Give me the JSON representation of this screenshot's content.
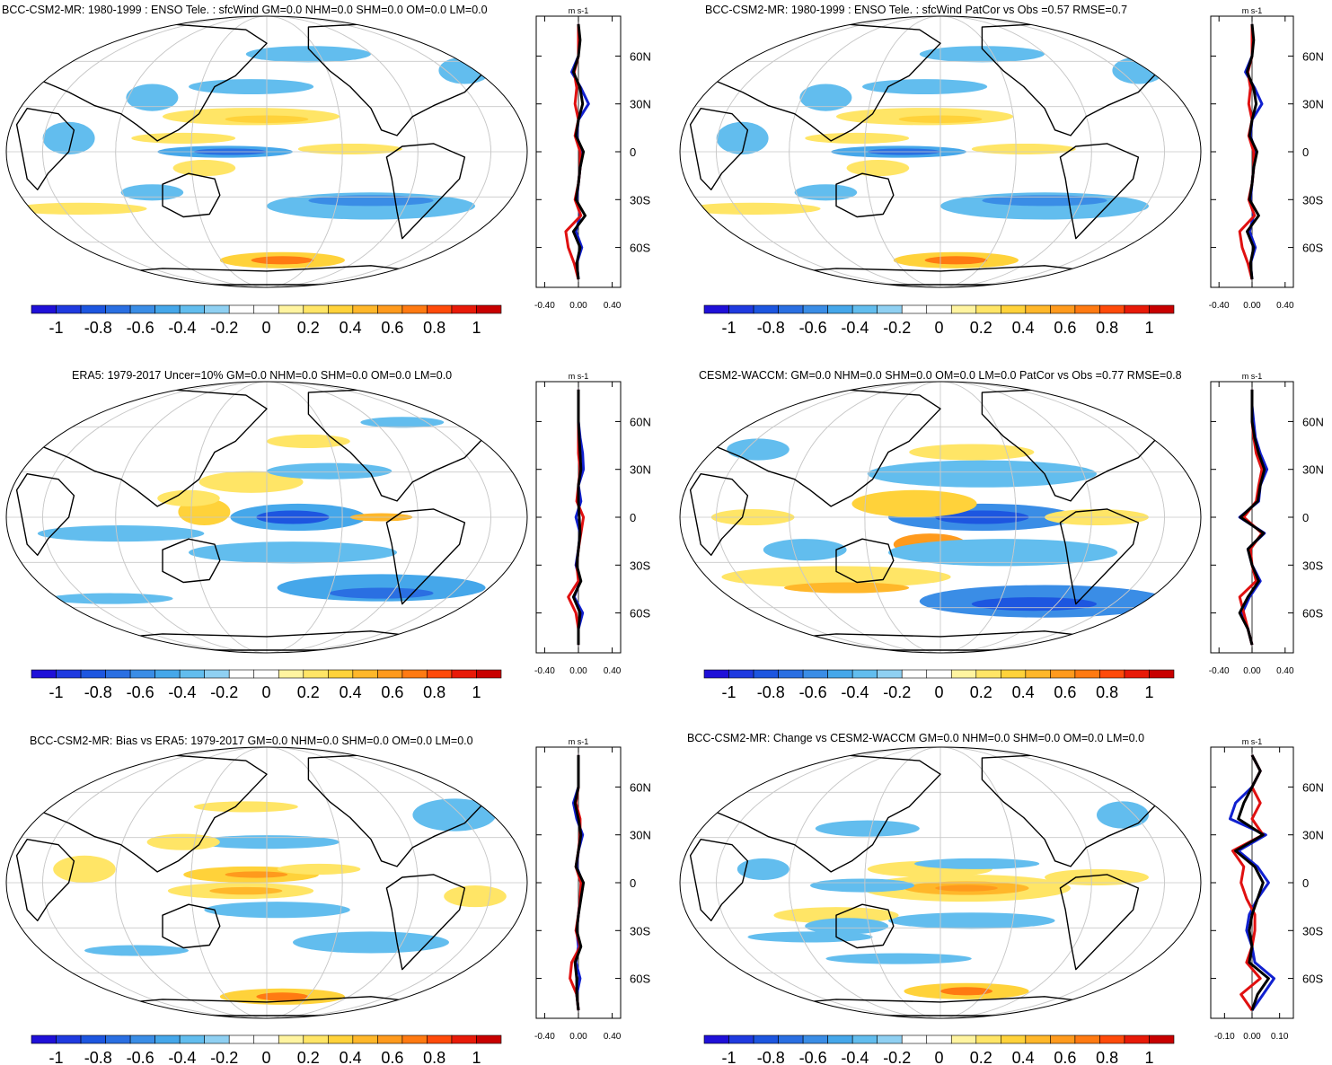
{
  "colorbar": {
    "colors": [
      "#1f10d8",
      "#1f3ae0",
      "#1d56e0",
      "#2a6fe2",
      "#3a8de6",
      "#45a7ea",
      "#62bdee",
      "#8fd0f2",
      "#ffffff",
      "#ffffff",
      "#fff4a0",
      "#ffe566",
      "#ffd23a",
      "#ffb72a",
      "#ff9a1d",
      "#ff7a12",
      "#ff4a0a",
      "#e81a08",
      "#c80000"
    ],
    "labels": [
      "-1",
      "-0.8",
      "-0.6",
      "-0.4",
      "-0.2",
      "0",
      "0.2",
      "0.4",
      "0.6",
      "0.8",
      "1"
    ]
  },
  "unit_label": "m s-1",
  "lat_labels": [
    "60N",
    "30N",
    "0",
    "30S",
    "60S"
  ],
  "panels": [
    {
      "id": "bcc-hist",
      "title": "BCC-CSM2-MR: 1980-1999 : ENSO Tele. : sfcWind GM=0.0 NHM=0.0 SHM=0.0 OM=0.0 LM=0.0",
      "profile_ticks": [
        "-0.40",
        "0.00",
        "0.40"
      ],
      "profile_range": [
        -0.5,
        0.5
      ]
    },
    {
      "id": "bcc-patcor",
      "title": "BCC-CSM2-MR: 1980-1999 : ENSO Tele. : sfcWind PatCor vs Obs =0.57 RMSE=0.7",
      "profile_ticks": [
        "-0.40",
        "0.00",
        "0.40"
      ],
      "profile_range": [
        -0.5,
        0.5
      ]
    },
    {
      "id": "era5",
      "title": "ERA5: 1979-2017 Uncer=10% GM=0.0 NHM=0.0 SHM=0.0 OM=0.0 LM=0.0",
      "profile_ticks": [
        "-0.40",
        "0.00",
        "0.40"
      ],
      "profile_range": [
        -0.5,
        0.5
      ]
    },
    {
      "id": "cesm2",
      "title": "CESM2-WACCM: GM=0.0 NHM=0.0 SHM=0.0 OM=0.0 LM=0.0 PatCor vs Obs =0.77 RMSE=0.8",
      "profile_ticks": [
        "-0.40",
        "0.00",
        "0.40"
      ],
      "profile_range": [
        -0.5,
        0.5
      ]
    },
    {
      "id": "bcc-bias",
      "title": "BCC-CSM2-MR: Bias vs ERA5: 1979-2017 GM=0.0 NHM=0.0 SHM=0.0 OM=0.0 LM=0.0",
      "profile_ticks": [
        "-0.40",
        "0.00",
        "0.40"
      ],
      "profile_range": [
        -0.5,
        0.5
      ]
    },
    {
      "id": "bcc-change",
      "title": "BCC-CSM2-MR: Change vs CESM2-WACCM GM=0.0 NHM=0.0 SHM=0.0 OM=0.0 LM=0.0",
      "profile_ticks": [
        "-0.10",
        "0.00",
        "0.10"
      ],
      "profile_range": [
        -0.15,
        0.15
      ]
    }
  ],
  "chart_data": {
    "type": "heatmap",
    "variable": "sfcWind ENSO teleconnection",
    "units": "m s-1",
    "value_range": [
      -1,
      1
    ],
    "profile_lats": [
      -80,
      -70,
      -60,
      -50,
      -40,
      -30,
      -20,
      -10,
      0,
      10,
      20,
      30,
      40,
      50,
      60,
      70,
      80
    ],
    "profiles": [
      {
        "panel": "bcc-hist",
        "series": [
          {
            "name": "blue",
            "color": "#1020d0",
            "values": [
              0.0,
              -0.02,
              0.04,
              -0.03,
              0.02,
              -0.02,
              0.0,
              0.02,
              0.04,
              -0.02,
              0.0,
              0.12,
              0.03,
              -0.08,
              0.0,
              0.0,
              0.0
            ]
          },
          {
            "name": "red",
            "color": "#e01010",
            "values": [
              0.0,
              -0.05,
              -0.12,
              -0.15,
              0.03,
              -0.04,
              0.0,
              0.02,
              0.02,
              -0.04,
              0.0,
              -0.04,
              -0.02,
              -0.05,
              0.0,
              0.0,
              0.0
            ]
          },
          {
            "name": "black",
            "color": "#000000",
            "values": [
              0.0,
              -0.02,
              0.02,
              -0.06,
              0.08,
              -0.03,
              0.0,
              0.02,
              0.06,
              -0.03,
              0.0,
              0.05,
              0.02,
              -0.06,
              0.0,
              0.02,
              0.0
            ]
          }
        ]
      },
      {
        "panel": "bcc-patcor",
        "series": [
          {
            "name": "blue",
            "color": "#1020d0",
            "values": [
              0.0,
              -0.02,
              0.04,
              -0.03,
              0.02,
              -0.02,
              0.0,
              0.02,
              0.04,
              -0.02,
              0.0,
              0.12,
              0.03,
              -0.08,
              0.0,
              0.0,
              0.0
            ]
          },
          {
            "name": "red",
            "color": "#e01010",
            "values": [
              0.0,
              -0.05,
              -0.12,
              -0.15,
              0.03,
              -0.04,
              0.0,
              0.02,
              0.02,
              -0.04,
              0.0,
              -0.04,
              -0.02,
              -0.05,
              0.0,
              0.0,
              0.0
            ]
          },
          {
            "name": "black",
            "color": "#000000",
            "values": [
              0.0,
              -0.02,
              0.02,
              -0.06,
              0.08,
              -0.03,
              0.0,
              0.02,
              0.06,
              -0.03,
              0.0,
              0.05,
              0.02,
              -0.06,
              0.0,
              0.02,
              0.0
            ]
          }
        ]
      },
      {
        "panel": "era5",
        "series": [
          {
            "name": "blue",
            "color": "#1020d0",
            "values": [
              0.0,
              0.0,
              0.05,
              -0.05,
              0.02,
              -0.03,
              0.0,
              0.02,
              -0.03,
              0.03,
              0.0,
              0.06,
              0.05,
              0.02,
              0.0,
              0.0,
              0.0
            ]
          },
          {
            "name": "red",
            "color": "#e01010",
            "values": [
              0.0,
              0.0,
              -0.03,
              -0.12,
              0.0,
              -0.02,
              0.0,
              0.03,
              0.06,
              -0.02,
              0.0,
              0.02,
              0.0,
              0.0,
              0.0,
              0.0,
              0.0
            ]
          },
          {
            "name": "black",
            "color": "#000000",
            "values": [
              0.0,
              0.0,
              0.02,
              -0.06,
              0.03,
              -0.02,
              0.0,
              0.02,
              0.01,
              0.0,
              0.0,
              0.03,
              0.02,
              0.01,
              0.0,
              0.0,
              0.0
            ]
          }
        ]
      },
      {
        "panel": "cesm2",
        "series": [
          {
            "name": "blue",
            "color": "#1020d0",
            "values": [
              0.0,
              -0.05,
              -0.12,
              -0.03,
              0.1,
              0.0,
              -0.05,
              0.15,
              -0.15,
              0.08,
              0.1,
              0.18,
              0.1,
              0.04,
              0.02,
              0.0,
              0.0
            ]
          },
          {
            "name": "red",
            "color": "#e01010",
            "values": [
              0.0,
              -0.05,
              -0.1,
              -0.15,
              0.05,
              0.0,
              -0.02,
              0.12,
              -0.1,
              0.05,
              0.08,
              0.12,
              0.05,
              0.02,
              0.0,
              0.0,
              0.0
            ]
          },
          {
            "name": "black",
            "color": "#000000",
            "values": [
              0.0,
              -0.05,
              -0.15,
              -0.05,
              0.08,
              0.0,
              -0.05,
              0.14,
              -0.14,
              0.07,
              0.1,
              0.15,
              0.08,
              0.03,
              0.0,
              0.0,
              0.0
            ]
          }
        ]
      },
      {
        "panel": "bcc-bias",
        "series": [
          {
            "name": "blue",
            "color": "#1020d0",
            "values": [
              0.0,
              -0.02,
              0.02,
              -0.03,
              0.0,
              -0.02,
              0.0,
              0.02,
              0.05,
              -0.02,
              0.0,
              0.05,
              -0.02,
              -0.06,
              0.0,
              0.0,
              0.0
            ]
          },
          {
            "name": "red",
            "color": "#e01010",
            "values": [
              0.0,
              -0.02,
              -0.1,
              -0.08,
              0.02,
              -0.03,
              0.0,
              0.02,
              0.03,
              -0.03,
              0.0,
              0.02,
              0.02,
              -0.03,
              0.0,
              0.0,
              0.0
            ]
          },
          {
            "name": "black",
            "color": "#000000",
            "values": [
              0.0,
              -0.02,
              -0.02,
              -0.04,
              0.03,
              -0.02,
              0.0,
              0.03,
              0.06,
              -0.03,
              0.0,
              0.03,
              0.0,
              -0.04,
              0.0,
              0.0,
              0.0
            ]
          }
        ]
      },
      {
        "panel": "bcc-change",
        "series": [
          {
            "name": "blue",
            "color": "#1020d0",
            "values": [
              0.0,
              0.04,
              0.08,
              0.01,
              0.0,
              -0.02,
              -0.01,
              0.02,
              0.06,
              0.02,
              -0.05,
              0.05,
              -0.08,
              -0.06,
              0.0,
              0.03,
              0.0
            ]
          },
          {
            "name": "red",
            "color": "#e01010",
            "values": [
              0.0,
              -0.04,
              0.03,
              -0.02,
              0.0,
              0.01,
              0.01,
              -0.02,
              -0.04,
              -0.03,
              -0.07,
              0.04,
              0.0,
              0.03,
              0.0,
              0.03,
              0.0
            ]
          },
          {
            "name": "black",
            "color": "#000000",
            "values": [
              0.0,
              0.02,
              0.06,
              -0.01,
              0.0,
              -0.01,
              0.0,
              0.02,
              0.04,
              0.01,
              -0.06,
              0.04,
              -0.05,
              -0.03,
              0.0,
              0.03,
              0.0
            ]
          }
        ]
      }
    ]
  }
}
